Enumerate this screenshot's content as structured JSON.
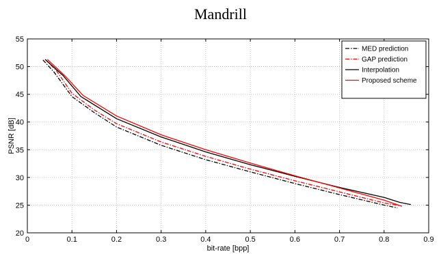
{
  "chart_data": {
    "type": "line",
    "title": "Mandrill",
    "xlabel": "bit-rate [bpp]",
    "ylabel": "PSNR [dB]",
    "xlim": [
      0,
      0.9
    ],
    "ylim": [
      20,
      55
    ],
    "xticks": [
      "0",
      "0.1",
      "0.2",
      "0.3",
      "0.4",
      "0.5",
      "0.6",
      "0.7",
      "0.8",
      "0.9"
    ],
    "yticks": [
      "20",
      "25",
      "30",
      "35",
      "40",
      "45",
      "50",
      "55"
    ],
    "grid": true,
    "legend_position": "top-right",
    "series": [
      {
        "name": "MED prediction",
        "color": "#000000",
        "dash": "dashdot",
        "points": [
          [
            0.035,
            51.2
          ],
          [
            0.06,
            49.0
          ],
          [
            0.1,
            44.6
          ],
          [
            0.15,
            41.7
          ],
          [
            0.2,
            39.1
          ],
          [
            0.3,
            35.8
          ],
          [
            0.4,
            33.2
          ],
          [
            0.5,
            31.0
          ],
          [
            0.6,
            28.9
          ],
          [
            0.7,
            26.9
          ],
          [
            0.8,
            25.0
          ],
          [
            0.83,
            24.5
          ]
        ]
      },
      {
        "name": "GAP prediction",
        "color": "#ff0000",
        "dash": "dashdot",
        "points": [
          [
            0.04,
            51.3
          ],
          [
            0.065,
            49.3
          ],
          [
            0.1,
            45.2
          ],
          [
            0.15,
            42.2
          ],
          [
            0.2,
            39.7
          ],
          [
            0.3,
            36.4
          ],
          [
            0.4,
            33.8
          ],
          [
            0.5,
            31.5
          ],
          [
            0.6,
            29.4
          ],
          [
            0.7,
            27.4
          ],
          [
            0.8,
            25.4
          ],
          [
            0.835,
            24.9
          ]
        ]
      },
      {
        "name": "Interpolation",
        "color": "#000000",
        "dash": "solid",
        "points": [
          [
            0.04,
            51.3
          ],
          [
            0.08,
            48.4
          ],
          [
            0.12,
            44.6
          ],
          [
            0.2,
            40.6
          ],
          [
            0.3,
            37.3
          ],
          [
            0.4,
            34.6
          ],
          [
            0.5,
            32.3
          ],
          [
            0.6,
            30.2
          ],
          [
            0.7,
            28.2
          ],
          [
            0.8,
            26.4
          ],
          [
            0.835,
            25.5
          ],
          [
            0.86,
            25.1
          ]
        ]
      },
      {
        "name": "Proposed scheme",
        "color": "#ff0000",
        "dash": "solid",
        "points": [
          [
            0.045,
            51.3
          ],
          [
            0.085,
            48.3
          ],
          [
            0.125,
            44.8
          ],
          [
            0.2,
            41.1
          ],
          [
            0.3,
            37.7
          ],
          [
            0.4,
            35.0
          ],
          [
            0.5,
            32.6
          ],
          [
            0.6,
            30.3
          ],
          [
            0.7,
            28.1
          ],
          [
            0.8,
            25.9
          ],
          [
            0.84,
            24.8
          ]
        ]
      }
    ]
  }
}
